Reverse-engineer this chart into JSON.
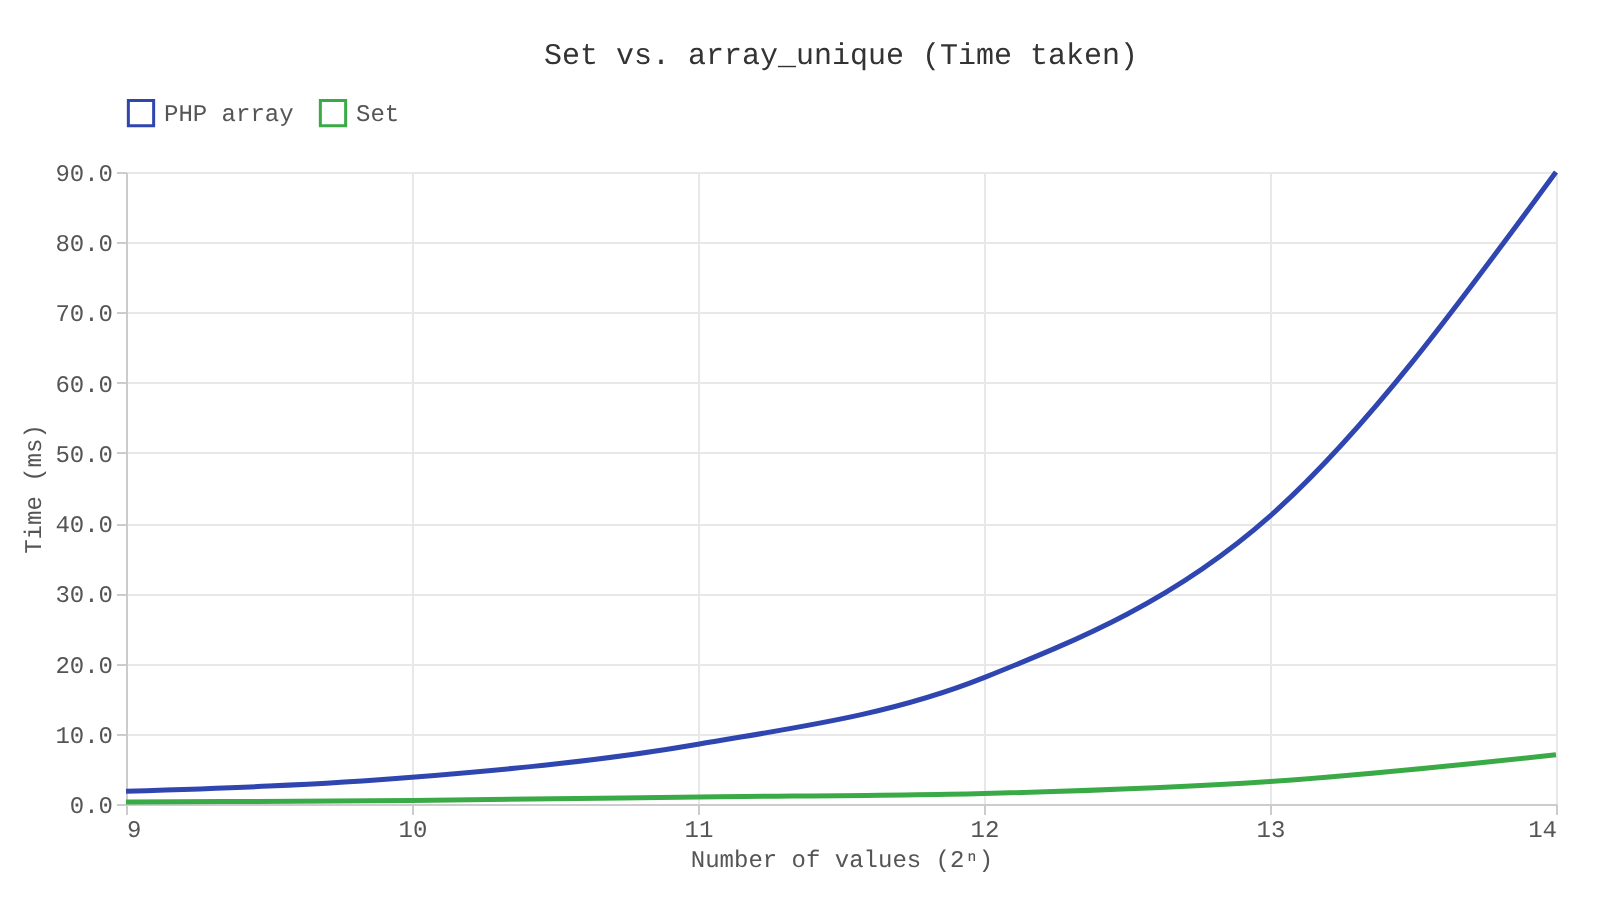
{
  "chart_data": {
    "type": "line",
    "title": "Set vs. array_unique (Time taken)",
    "xlabel": "Number of values (2ⁿ)",
    "ylabel": "Time (ms)",
    "x": [
      9,
      10,
      11,
      12,
      13,
      14
    ],
    "series": [
      {
        "name": "PHP array",
        "color": "#2f45b0",
        "values": [
          1.8,
          3.8,
          8.5,
          18,
          41,
          90
        ]
      },
      {
        "name": "Set",
        "color": "#3aaa46",
        "values": [
          0.3,
          0.5,
          1.0,
          1.5,
          3.2,
          7.0
        ]
      }
    ],
    "xlim": [
      9,
      14
    ],
    "xticks": [
      9,
      10,
      11,
      12,
      13,
      14
    ],
    "ylim": [
      0,
      90
    ],
    "yticks": [
      {
        "value": 0,
        "label": "0.0"
      },
      {
        "value": 10,
        "label": "10.0"
      },
      {
        "value": 20,
        "label": "20.0"
      },
      {
        "value": 30,
        "label": "30.0"
      },
      {
        "value": 40,
        "label": "40.0"
      },
      {
        "value": 50,
        "label": "50.0"
      },
      {
        "value": 60,
        "label": "60.0"
      },
      {
        "value": 70,
        "label": "70.0"
      },
      {
        "value": 80,
        "label": "80.0"
      },
      {
        "value": 90,
        "label": "90.0"
      }
    ],
    "grid": true,
    "legend": "top",
    "marker": "none",
    "line_style": "solid"
  }
}
